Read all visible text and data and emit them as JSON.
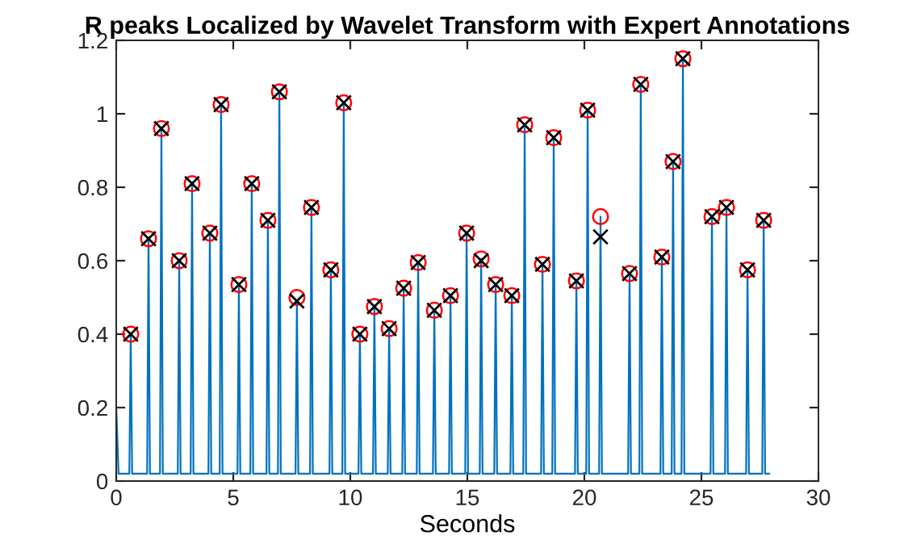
{
  "chart_data": {
    "type": "line",
    "title": "R peaks Localized by Wavelet Transform with Expert Annotations",
    "xlabel": "Seconds",
    "xlim": [
      0,
      30
    ],
    "xticks": [
      0,
      5,
      10,
      15,
      20,
      25,
      30
    ],
    "ylim": [
      0,
      1.2
    ],
    "yticks": [
      0,
      0.2,
      0.4,
      0.6,
      0.8,
      1,
      1.2
    ],
    "grid": false,
    "legend": false,
    "series": [
      {
        "color": "#0072bd",
        "marker": "none",
        "line_style": "solid",
        "x": [
          0,
          0.1,
          0.56,
          0.62,
          0.68,
          1.32,
          1.38,
          1.44,
          1.87,
          1.93,
          1.99,
          2.63,
          2.69,
          2.75,
          3.18,
          3.24,
          3.3,
          3.94,
          4.0,
          4.06,
          4.42,
          4.48,
          4.54,
          5.18,
          5.24,
          5.3,
          5.73,
          5.79,
          5.85,
          6.42,
          6.48,
          6.54,
          6.91,
          6.97,
          7.03,
          7.66,
          7.72,
          7.78,
          8.28,
          8.34,
          8.4,
          9.11,
          9.17,
          9.23,
          9.66,
          9.72,
          9.78,
          10.35,
          10.41,
          10.47,
          10.97,
          11.03,
          11.09,
          11.6,
          11.66,
          11.72,
          12.22,
          12.28,
          12.34,
          12.84,
          12.9,
          12.96,
          13.53,
          13.59,
          13.65,
          14.22,
          14.28,
          14.34,
          14.91,
          14.97,
          15.03,
          15.53,
          15.59,
          15.65,
          16.15,
          16.21,
          16.27,
          16.84,
          16.9,
          16.96,
          17.39,
          17.45,
          17.51,
          18.15,
          18.21,
          18.27,
          18.63,
          18.69,
          18.75,
          19.6,
          19.66,
          19.72,
          20.08,
          20.14,
          20.2,
          20.63,
          20.69,
          20.75,
          21.87,
          21.93,
          21.99,
          22.35,
          22.41,
          22.47,
          23.25,
          23.31,
          23.37,
          23.73,
          23.79,
          23.85,
          24.15,
          24.21,
          24.27,
          25.39,
          25.45,
          25.51,
          26.01,
          26.07,
          26.13,
          26.91,
          26.97,
          27.03,
          27.6,
          27.66,
          27.72,
          27.9
        ],
        "values": [
          0.2,
          0.02,
          0.02,
          0.4,
          0.02,
          0.02,
          0.66,
          0.02,
          0.02,
          0.96,
          0.02,
          0.02,
          0.6,
          0.02,
          0.02,
          0.81,
          0.02,
          0.02,
          0.675,
          0.02,
          0.02,
          1.025,
          0.02,
          0.02,
          0.535,
          0.02,
          0.02,
          0.81,
          0.02,
          0.02,
          0.71,
          0.02,
          0.02,
          1.06,
          0.02,
          0.02,
          0.49,
          0.02,
          0.02,
          0.745,
          0.02,
          0.02,
          0.575,
          0.02,
          0.02,
          1.03,
          0.02,
          0.02,
          0.4,
          0.02,
          0.02,
          0.475,
          0.02,
          0.02,
          0.415,
          0.02,
          0.02,
          0.525,
          0.02,
          0.02,
          0.595,
          0.02,
          0.02,
          0.465,
          0.02,
          0.02,
          0.505,
          0.02,
          0.02,
          0.675,
          0.02,
          0.02,
          0.605,
          0.02,
          0.02,
          0.535,
          0.02,
          0.02,
          0.505,
          0.02,
          0.02,
          0.97,
          0.02,
          0.02,
          0.59,
          0.02,
          0.02,
          0.935,
          0.02,
          0.02,
          0.545,
          0.02,
          0.02,
          1.01,
          0.02,
          0.02,
          0.72,
          0.02,
          0.02,
          0.565,
          0.02,
          0.02,
          1.08,
          0.02,
          0.02,
          0.61,
          0.02,
          0.02,
          0.87,
          0.02,
          0.02,
          1.15,
          0.02,
          0.02,
          0.72,
          0.02,
          0.02,
          0.745,
          0.02,
          0.02,
          0.575,
          0.02,
          0.02,
          0.71,
          0.02,
          0.02
        ]
      },
      {
        "type": "scatter",
        "color": "#ff0000",
        "marker": "circle",
        "x": [
          0.62,
          1.38,
          1.93,
          2.69,
          3.24,
          4.0,
          4.48,
          5.24,
          5.79,
          6.48,
          6.97,
          7.72,
          8.34,
          9.17,
          9.72,
          10.41,
          11.03,
          11.66,
          12.28,
          12.9,
          13.59,
          14.28,
          14.97,
          15.59,
          16.21,
          16.9,
          17.45,
          18.21,
          18.69,
          19.66,
          20.14,
          20.69,
          21.93,
          22.41,
          23.31,
          23.79,
          24.21,
          25.45,
          26.07,
          26.97,
          27.66
        ],
        "values": [
          0.4,
          0.66,
          0.96,
          0.6,
          0.81,
          0.675,
          1.025,
          0.535,
          0.81,
          0.71,
          1.06,
          0.5,
          0.745,
          0.575,
          1.03,
          0.4,
          0.475,
          0.415,
          0.525,
          0.595,
          0.465,
          0.505,
          0.675,
          0.605,
          0.535,
          0.505,
          0.97,
          0.59,
          0.935,
          0.545,
          1.01,
          0.72,
          0.565,
          1.08,
          0.61,
          0.87,
          1.15,
          0.72,
          0.745,
          0.575,
          0.71
        ]
      },
      {
        "type": "scatter",
        "color": "#000000",
        "marker": "cross",
        "x": [
          0.62,
          1.38,
          1.93,
          2.69,
          3.24,
          4.0,
          4.48,
          5.24,
          5.79,
          6.48,
          6.97,
          7.72,
          8.34,
          9.17,
          9.72,
          10.41,
          11.03,
          11.66,
          12.28,
          12.9,
          13.59,
          14.28,
          14.97,
          15.59,
          16.21,
          16.9,
          17.45,
          18.21,
          18.69,
          19.66,
          20.14,
          20.69,
          21.93,
          22.41,
          23.31,
          23.79,
          24.21,
          25.45,
          26.07,
          26.97,
          27.66
        ],
        "values": [
          0.4,
          0.66,
          0.96,
          0.6,
          0.81,
          0.675,
          1.025,
          0.535,
          0.81,
          0.71,
          1.06,
          0.49,
          0.745,
          0.575,
          1.03,
          0.4,
          0.475,
          0.415,
          0.525,
          0.595,
          0.465,
          0.505,
          0.675,
          0.6,
          0.535,
          0.505,
          0.97,
          0.59,
          0.935,
          0.545,
          1.01,
          0.665,
          0.565,
          1.08,
          0.61,
          0.87,
          1.15,
          0.72,
          0.745,
          0.575,
          0.71
        ]
      }
    ]
  }
}
